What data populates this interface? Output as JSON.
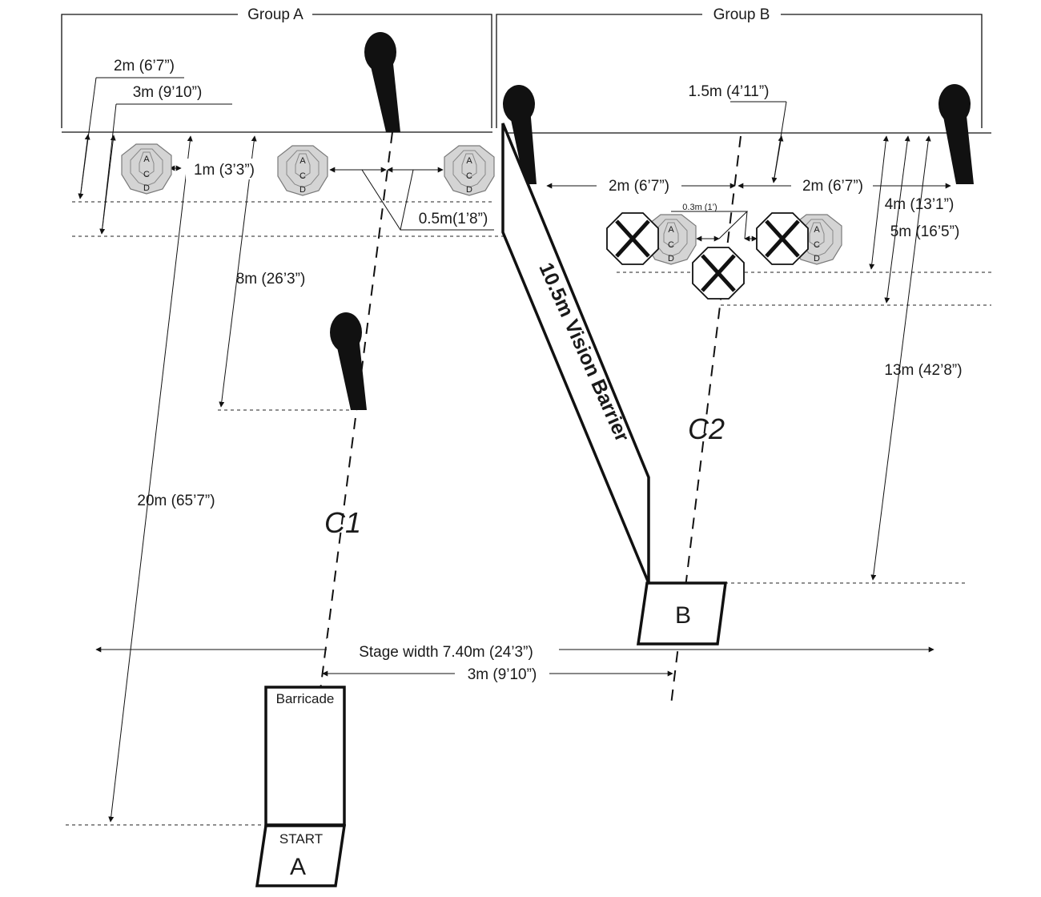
{
  "diagram": {
    "groups": {
      "a": "Group A",
      "b": "Group B"
    },
    "dimensions": {
      "d_2m_left": "2m (6’7”)",
      "d_3m_left": "3m (9’10”)",
      "d_1m": "1m (3’3”)",
      "d_05m": "0.5m(1’8”)",
      "d_8m": "8m (26’3”)",
      "d_20m": "20m (65’7”)",
      "d_15m": "1.5m (4’11”)",
      "d_2m_b1": "2m (6’7”)",
      "d_2m_b2": "2m (6’7”)",
      "d_03m": "0.3m (1’)",
      "d_4m": "4m (13’1”)",
      "d_5m": "5m (16’5”)",
      "d_13m": "13m (42’8”)",
      "stage_width": "Stage width 7.40m (24’3”)",
      "d_3m_bottom": "3m (9’10”)"
    },
    "labels": {
      "vision_barrier": "10.5m Vision Barrier",
      "barricade": "Barricade",
      "start": "START",
      "box_a": "A",
      "box_b": "B",
      "cl1": "C1",
      "cl2": "C2"
    },
    "target_zone_letters": [
      "A",
      "C",
      "D"
    ],
    "colors": {
      "line": "#111111",
      "target_fill": "#d4d4d4",
      "target_stroke": "#777777",
      "popper": "#111111"
    }
  }
}
